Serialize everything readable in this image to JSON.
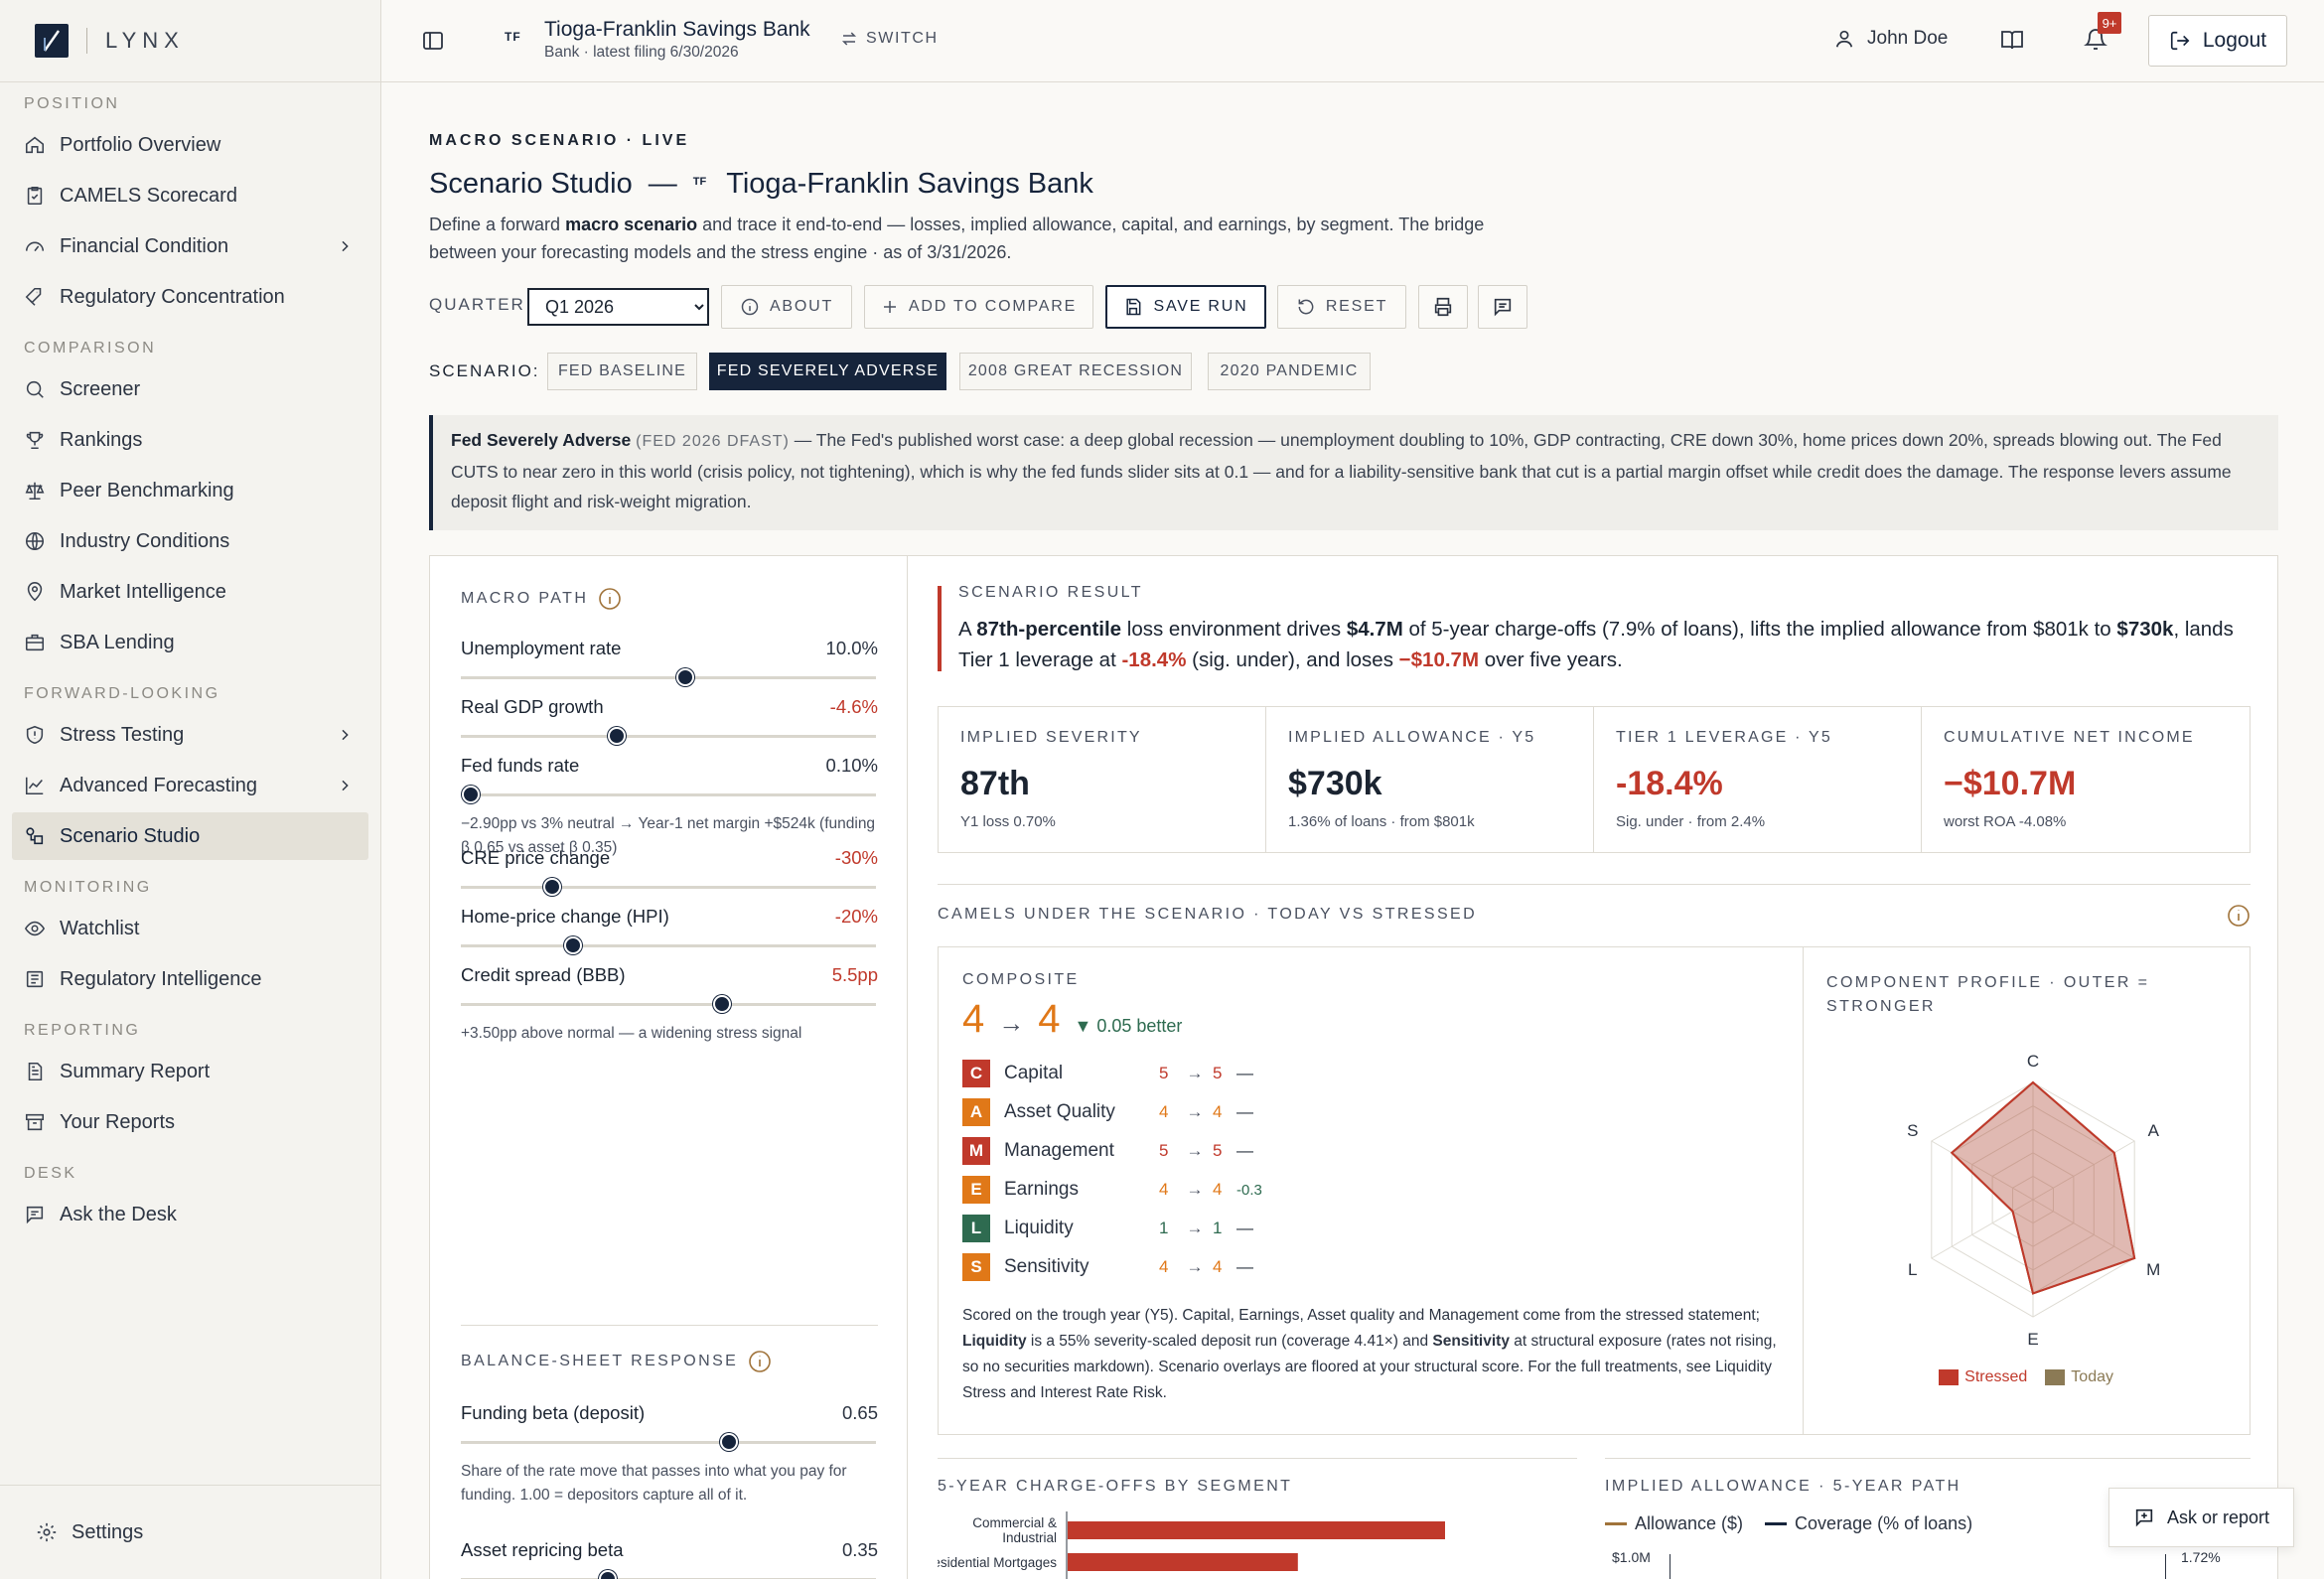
{
  "app": {
    "brand": "LYNX"
  },
  "sidebar": {
    "sections": [
      {
        "title": "POSITION",
        "items": [
          {
            "label": "Portfolio Overview",
            "icon": "home-icon"
          },
          {
            "label": "CAMELS Scorecard",
            "icon": "clipboard-icon"
          },
          {
            "label": "Financial Condition",
            "icon": "gauge-icon",
            "chevron": true
          },
          {
            "label": "Regulatory Concentration",
            "icon": "tag-icon"
          }
        ]
      },
      {
        "title": "COMPARISON",
        "items": [
          {
            "label": "Screener",
            "icon": "search-icon"
          },
          {
            "label": "Rankings",
            "icon": "trophy-icon"
          },
          {
            "label": "Peer Benchmarking",
            "icon": "scale-icon"
          },
          {
            "label": "Industry Conditions",
            "icon": "globe-icon"
          },
          {
            "label": "Market Intelligence",
            "icon": "map-pin-icon"
          },
          {
            "label": "SBA Lending",
            "icon": "briefcase-icon"
          }
        ]
      },
      {
        "title": "FORWARD-LOOKING",
        "items": [
          {
            "label": "Stress Testing",
            "icon": "shield-icon",
            "chevron": true
          },
          {
            "label": "Advanced Forecasting",
            "icon": "line-chart-icon",
            "chevron": true
          },
          {
            "label": "Scenario Studio",
            "icon": "shapes-icon",
            "active": true
          }
        ]
      },
      {
        "title": "MONITORING",
        "items": [
          {
            "label": "Watchlist",
            "icon": "eye-icon"
          },
          {
            "label": "Regulatory Intelligence",
            "icon": "newspaper-icon"
          }
        ]
      },
      {
        "title": "REPORTING",
        "items": [
          {
            "label": "Summary Report",
            "icon": "file-icon"
          },
          {
            "label": "Your Reports",
            "icon": "archive-icon"
          }
        ]
      },
      {
        "title": "DESK",
        "items": [
          {
            "label": "Ask the Desk",
            "icon": "chat-icon"
          }
        ]
      }
    ],
    "settings_label": "Settings"
  },
  "topbar": {
    "bank_initials": "TF",
    "bank_name": "Tioga-Franklin Savings Bank",
    "bank_sub": "Bank · latest filing 6/30/2026",
    "switch_label": "SWITCH",
    "user_name": "John Doe",
    "notif_badge": "9+",
    "logout_label": "Logout"
  },
  "page": {
    "eyebrow": "MACRO SCENARIO · LIVE",
    "title": "Scenario Studio",
    "title_dash": "—",
    "title_initials": "TF",
    "title_bank": "Tioga-Franklin Savings Bank",
    "intro_1": "Define a forward ",
    "intro_bold": "macro scenario",
    "intro_2": " and trace it end-to-end — losses, implied allowance, capital, and earnings, by segment. The bridge between your forecasting models and the stress engine · as of 3/31/2026.",
    "quarter_label": "QUARTER",
    "quarter_value": "Q1 2026",
    "quarter_options": [
      "Q1 2026"
    ],
    "about_label": "ABOUT",
    "compare_label": "ADD TO COMPARE",
    "save_label": "SAVE RUN",
    "reset_label": "RESET",
    "scenario_label": "SCENARIO:",
    "scenarios": [
      "FED BASELINE",
      "FED SEVERELY ADVERSE",
      "2008 GREAT RECESSION",
      "2020 PANDEMIC"
    ],
    "selected_scenario": "FED SEVERELY ADVERSE"
  },
  "callout": {
    "name": "Fed Severely Adverse",
    "tag": "(FED 2026 DFAST)",
    "text": " — The Fed's published worst case: a deep global recession — unemployment doubling to 10%, GDP contracting, CRE down 30%, home prices down 20%, spreads blowing out. The Fed CUTS to near zero in this world (crisis policy, not tightening), which is why the fed funds slider sits at 0.1 — and for a liability-sensitive bank that cut is a partial margin offset while credit does the damage. The response levers assume deposit flight and risk-weight migration."
  },
  "macro": {
    "title": "MACRO PATH",
    "sliders": [
      {
        "name": "Unemployment rate",
        "value": "10.0%",
        "level": 0.54,
        "tone": "neutral"
      },
      {
        "name": "Real GDP growth",
        "value": "-4.6%",
        "level": 0.375,
        "tone": "red"
      },
      {
        "name": "Fed funds rate",
        "value": "0.10%",
        "level": 0.025,
        "tone": "neutral",
        "note": "−2.90pp vs 3% neutral → Year-1 net margin +$524k (funding β 0.65 vs asset β 0.35)"
      },
      {
        "name": "CRE price change",
        "value": "-30%",
        "level": 0.22,
        "tone": "red"
      },
      {
        "name": "Home-price change (HPI)",
        "value": "-20%",
        "level": 0.27,
        "tone": "red"
      },
      {
        "name": "Credit spread (BBB)",
        "value": "5.5pp",
        "level": 0.63,
        "tone": "red",
        "note": "+3.50pp above normal — a widening stress signal"
      }
    ]
  },
  "balance": {
    "title": "BALANCE-SHEET RESPONSE",
    "sliders": [
      {
        "name": "Funding beta (deposit)",
        "value": "0.65",
        "level": 0.645,
        "tone": "neutral",
        "note": "Share of the rate move that passes into what you pay for funding. 1.00 = depositors capture all of it."
      },
      {
        "name": "Asset repricing beta",
        "value": "0.35",
        "level": 0.355,
        "tone": "neutral",
        "note": "Share the earning-asset book recaptures. Below the funding beta = liability-sensitive, the usual community-bank shape."
      }
    ]
  },
  "result": {
    "title": "SCENARIO RESULT",
    "s1": "A ",
    "b1": "87th-percentile",
    "s2": " loss environment drives ",
    "b2": "$4.7M",
    "s3": " of 5-year charge-offs (7.9% of loans), lifts the implied allowance from $801k to ",
    "b3": "$730k",
    "s4": ", lands Tier 1 leverage at ",
    "r1": "-18.4%",
    "s5": " (sig. under), and loses ",
    "r2": "−$10.7M",
    "s6": " over five years."
  },
  "kpis": [
    {
      "label": "IMPLIED SEVERITY",
      "value": "87th",
      "sub": "Y1 loss 0.70%",
      "tone": "neutral"
    },
    {
      "label": "IMPLIED ALLOWANCE · Y5",
      "value": "$730k",
      "sub": "1.36% of loans · from $801k",
      "tone": "neutral"
    },
    {
      "label": "TIER 1 LEVERAGE · Y5",
      "value": "-18.4%",
      "sub": "Sig. under · from 2.4%",
      "tone": "red"
    },
    {
      "label": "CUMULATIVE NET INCOME",
      "value": "−$10.7M",
      "sub": "worst ROA -4.08%",
      "tone": "red"
    }
  ],
  "camels": {
    "title": "CAMELS UNDER THE SCENARIO · TODAY VS STRESSED",
    "composite_label": "COMPOSITE",
    "composite_today": "4",
    "composite_arrow": "→",
    "composite_stressed": "4",
    "composite_delta": "▼ 0.05 better",
    "components": [
      {
        "letter": "C",
        "name": "Capital",
        "today": "5",
        "stressed": "5",
        "delta": "—",
        "color": "#c0392b"
      },
      {
        "letter": "A",
        "name": "Asset Quality",
        "today": "4",
        "stressed": "4",
        "delta": "—",
        "color": "#e07818"
      },
      {
        "letter": "M",
        "name": "Management",
        "today": "5",
        "stressed": "5",
        "delta": "—",
        "color": "#c0392b"
      },
      {
        "letter": "E",
        "name": "Earnings",
        "today": "4",
        "stressed": "4",
        "delta": "-0.3",
        "color": "#e07818"
      },
      {
        "letter": "L",
        "name": "Liquidity",
        "today": "1",
        "stressed": "1",
        "delta": "—",
        "color": "#2e6b50"
      },
      {
        "letter": "S",
        "name": "Sensitivity",
        "today": "4",
        "stressed": "4",
        "delta": "—",
        "color": "#e07818"
      }
    ],
    "note_1": "Scored on the trough year (Y5). Capital, Earnings, Asset quality and Management come from the stressed statement; ",
    "note_b1": "Liquidity",
    "note_2": " is a 55% severity-scaled deposit run (coverage 4.41×) and ",
    "note_b2": "Sensitivity",
    "note_3": " at structural exposure (rates not rising, so no securities markdown). Scenario overlays are floored at your structural score. For the full treatments, see Liquidity Stress and Interest Rate Risk.",
    "profile_title": "COMPONENT PROFILE · OUTER = STRONGER",
    "axes": [
      "C",
      "A",
      "M",
      "E",
      "L",
      "S"
    ],
    "stressed_profile": [
      1,
      2,
      1,
      2,
      5,
      2
    ],
    "today_profile": [
      1,
      2,
      1,
      2,
      5,
      2
    ],
    "legend_stressed": "Stressed",
    "legend_today": "Today",
    "stressed_color": "#c0392b",
    "today_color": "#8b7a55"
  },
  "chargeoffs": {
    "title": "5-YEAR CHARGE-OFFS BY SEGMENT",
    "categories": [
      "Commercial & Industrial",
      "Residential Mortgages"
    ],
    "values": [
      1.0,
      0.61
    ]
  },
  "allowance": {
    "title": "IMPLIED ALLOWANCE · 5-YEAR PATH",
    "legend_allowance": "Allowance ($)",
    "legend_coverage": "Coverage (% of loans)",
    "y_left_top": "$1.0M",
    "y_right_top": "1.72%"
  },
  "fab_label": "Ask or report"
}
